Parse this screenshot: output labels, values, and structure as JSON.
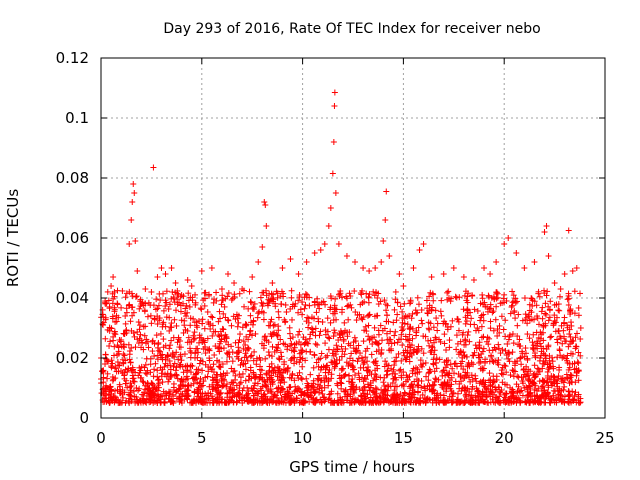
{
  "chart_data": {
    "type": "scatter",
    "title": "Day 293 of 2016, Rate Of TEC Index for receiver nebo",
    "xlabel": "GPS time / hours",
    "ylabel": "ROTI / TECUs",
    "xlim": [
      0,
      25
    ],
    "ylim": [
      0,
      0.12
    ],
    "xticks": [
      0,
      5,
      10,
      15,
      20,
      25
    ],
    "xtick_labels": [
      "0",
      "5",
      "10",
      "15",
      "20",
      "25"
    ],
    "yticks": [
      0,
      0.02,
      0.04,
      0.06,
      0.08,
      0.1,
      0.12
    ],
    "ytick_labels": [
      "0",
      "0.02",
      "0.04",
      "0.06",
      "0.08",
      "0.1",
      "0.12"
    ],
    "grid": true,
    "marker": "+",
    "color": "#ff0000",
    "series": [
      {
        "name": "ROTI",
        "data_coverage_hours": [
          0,
          23.8
        ],
        "typical_range": [
          0.005,
          0.035
        ],
        "points": [
          [
            0.0,
            0.013
          ],
          [
            0.1,
            0.031
          ],
          [
            0.2,
            0.018
          ],
          [
            0.3,
            0.01
          ],
          [
            0.4,
            0.024
          ],
          [
            0.5,
            0.044
          ],
          [
            0.6,
            0.047
          ],
          [
            0.7,
            0.032
          ],
          [
            0.8,
            0.021
          ],
          [
            1.0,
            0.026
          ],
          [
            1.2,
            0.034
          ],
          [
            1.4,
            0.058
          ],
          [
            1.5,
            0.066
          ],
          [
            1.55,
            0.072
          ],
          [
            1.6,
            0.078
          ],
          [
            1.65,
            0.075
          ],
          [
            1.7,
            0.059
          ],
          [
            1.8,
            0.049
          ],
          [
            2.0,
            0.038
          ],
          [
            2.2,
            0.043
          ],
          [
            2.5,
            0.042
          ],
          [
            2.6,
            0.0835
          ],
          [
            2.8,
            0.047
          ],
          [
            3.0,
            0.05
          ],
          [
            3.2,
            0.048
          ],
          [
            3.5,
            0.05
          ],
          [
            3.7,
            0.045
          ],
          [
            4.0,
            0.041
          ],
          [
            4.3,
            0.046
          ],
          [
            4.5,
            0.044
          ],
          [
            5.0,
            0.049
          ],
          [
            5.5,
            0.05
          ],
          [
            6.0,
            0.043
          ],
          [
            6.3,
            0.048
          ],
          [
            6.6,
            0.045
          ],
          [
            7.0,
            0.043
          ],
          [
            7.5,
            0.047
          ],
          [
            7.8,
            0.052
          ],
          [
            8.0,
            0.057
          ],
          [
            8.1,
            0.072
          ],
          [
            8.15,
            0.071
          ],
          [
            8.2,
            0.064
          ],
          [
            8.5,
            0.045
          ],
          [
            9.0,
            0.05
          ],
          [
            9.4,
            0.053
          ],
          [
            9.8,
            0.048
          ],
          [
            10.2,
            0.052
          ],
          [
            10.6,
            0.055
          ],
          [
            10.9,
            0.056
          ],
          [
            11.1,
            0.058
          ],
          [
            11.3,
            0.064
          ],
          [
            11.4,
            0.07
          ],
          [
            11.5,
            0.0815
          ],
          [
            11.55,
            0.092
          ],
          [
            11.58,
            0.104
          ],
          [
            11.6,
            0.1085
          ],
          [
            11.65,
            0.075
          ],
          [
            11.8,
            0.058
          ],
          [
            12.2,
            0.054
          ],
          [
            12.6,
            0.052
          ],
          [
            13.0,
            0.05
          ],
          [
            13.3,
            0.049
          ],
          [
            13.6,
            0.05
          ],
          [
            13.9,
            0.052
          ],
          [
            14.0,
            0.059
          ],
          [
            14.1,
            0.066
          ],
          [
            14.15,
            0.0755
          ],
          [
            14.3,
            0.054
          ],
          [
            14.8,
            0.048
          ],
          [
            15.0,
            0.044
          ],
          [
            15.5,
            0.05
          ],
          [
            15.8,
            0.056
          ],
          [
            16.0,
            0.058
          ],
          [
            16.4,
            0.047
          ],
          [
            17.0,
            0.048
          ],
          [
            17.5,
            0.05
          ],
          [
            18.0,
            0.047
          ],
          [
            18.5,
            0.046
          ],
          [
            19.0,
            0.05
          ],
          [
            19.3,
            0.048
          ],
          [
            19.6,
            0.052
          ],
          [
            20.0,
            0.058
          ],
          [
            20.2,
            0.06
          ],
          [
            20.6,
            0.055
          ],
          [
            21.0,
            0.05
          ],
          [
            21.5,
            0.052
          ],
          [
            22.0,
            0.062
          ],
          [
            22.1,
            0.064
          ],
          [
            22.2,
            0.054
          ],
          [
            22.5,
            0.045
          ],
          [
            22.8,
            0.043
          ],
          [
            23.0,
            0.048
          ],
          [
            23.2,
            0.0625
          ],
          [
            23.4,
            0.049
          ],
          [
            23.6,
            0.05
          ],
          [
            23.8,
            0.03
          ]
        ]
      }
    ]
  }
}
